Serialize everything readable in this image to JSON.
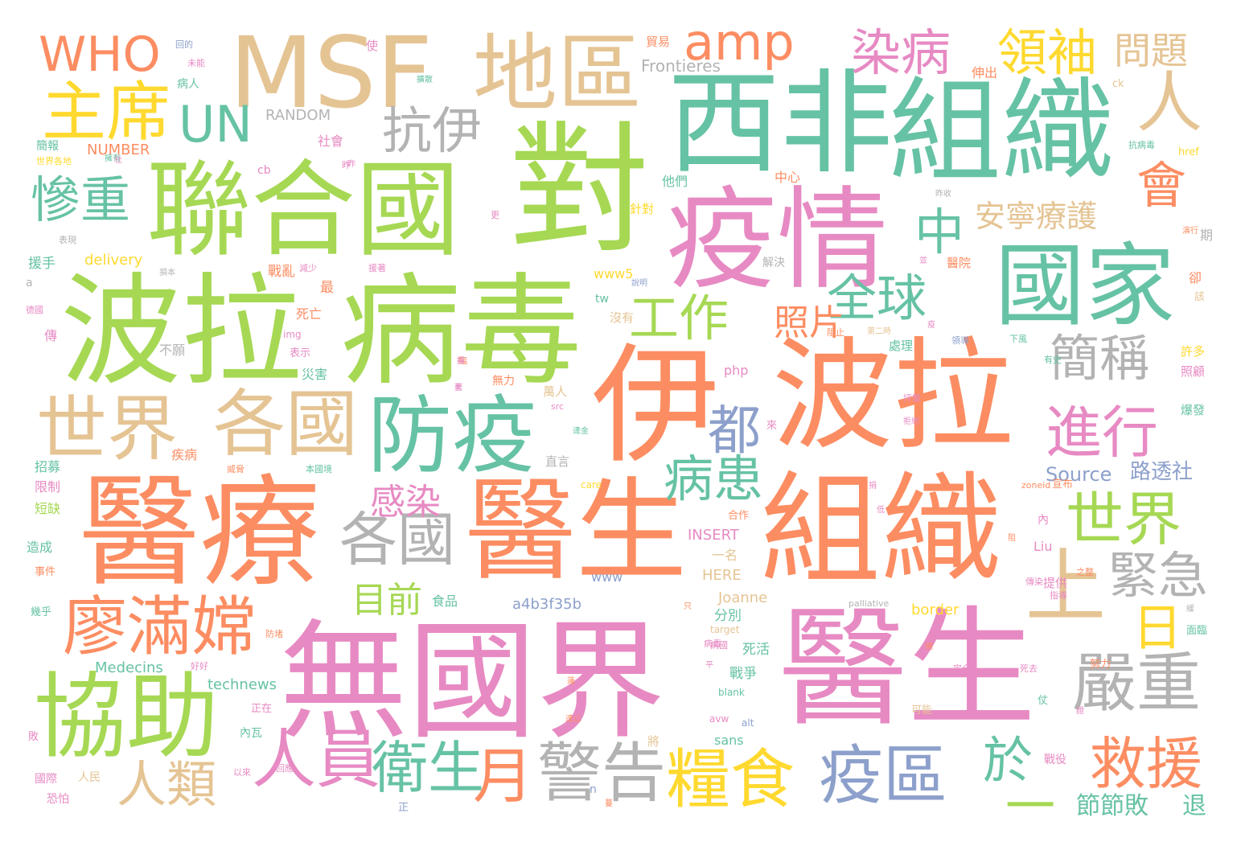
{
  "colors": {
    "pink": "#e78ac3",
    "orange": "#fc8d62",
    "green": "#a6d854",
    "teal": "#66c2a5",
    "tan": "#e5c494",
    "gray": "#b3b3b3",
    "blue": "#8da0cb",
    "yellow": "#ffd92f"
  },
  "words": [
    {
      "text": "無國界",
      "color": "pink"
    },
    {
      "text": "醫生",
      "color": "pink"
    },
    {
      "text": "醫療",
      "color": "orange"
    },
    {
      "text": "醫生",
      "color": "orange"
    },
    {
      "text": "組織",
      "color": "orange"
    },
    {
      "text": "伊",
      "color": "orange"
    },
    {
      "text": "波拉",
      "color": "orange"
    },
    {
      "text": "波拉",
      "color": "green"
    },
    {
      "text": "病毒",
      "color": "green"
    },
    {
      "text": "聯合國",
      "color": "green"
    },
    {
      "text": "對",
      "color": "green"
    },
    {
      "text": "西非",
      "color": "teal"
    },
    {
      "text": "組織",
      "color": "teal"
    },
    {
      "text": "疫情",
      "color": "pink"
    },
    {
      "text": "國家",
      "color": "teal"
    },
    {
      "text": "MSF",
      "color": "tan"
    },
    {
      "text": "地區",
      "color": "tan"
    },
    {
      "text": "協助",
      "color": "green"
    },
    {
      "text": "防疫",
      "color": "teal"
    },
    {
      "text": "世界",
      "color": "tan"
    },
    {
      "text": "各國",
      "color": "tan"
    },
    {
      "text": "各國",
      "color": "gray"
    },
    {
      "text": "廖滿嫦",
      "color": "orange"
    },
    {
      "text": "主席",
      "color": "yellow"
    },
    {
      "text": "WHO",
      "color": "orange"
    },
    {
      "text": "UN",
      "color": "teal"
    },
    {
      "text": "amp",
      "color": "orange"
    },
    {
      "text": "抗伊",
      "color": "gray"
    },
    {
      "text": "染病",
      "color": "pink"
    },
    {
      "text": "領袖",
      "color": "yellow"
    },
    {
      "text": "問題",
      "color": "tan"
    },
    {
      "text": "人",
      "color": "tan"
    },
    {
      "text": "會",
      "color": "orange"
    },
    {
      "text": "中",
      "color": "teal"
    },
    {
      "text": "慘重",
      "color": "teal"
    },
    {
      "text": "工作",
      "color": "green"
    },
    {
      "text": "全球",
      "color": "teal"
    },
    {
      "text": "照片",
      "color": "orange"
    },
    {
      "text": "安寧療護",
      "color": "tan"
    },
    {
      "text": "簡稱",
      "color": "gray"
    },
    {
      "text": "進行",
      "color": "pink"
    },
    {
      "text": "都",
      "color": "blue"
    },
    {
      "text": "病患",
      "color": "teal"
    },
    {
      "text": "世界",
      "color": "green"
    },
    {
      "text": "上",
      "color": "tan"
    },
    {
      "text": "緊急",
      "color": "gray"
    },
    {
      "text": "日",
      "color": "yellow"
    },
    {
      "text": "嚴重",
      "color": "gray"
    },
    {
      "text": "救援",
      "color": "orange"
    },
    {
      "text": "感染",
      "color": "pink"
    },
    {
      "text": "目前",
      "color": "green"
    },
    {
      "text": "人員",
      "color": "pink"
    },
    {
      "text": "人類",
      "color": "tan"
    },
    {
      "text": "衛生",
      "color": "teal"
    },
    {
      "text": "月",
      "color": "orange"
    },
    {
      "text": "警告",
      "color": "gray"
    },
    {
      "text": "糧食",
      "color": "yellow"
    },
    {
      "text": "疫區",
      "color": "blue"
    },
    {
      "text": "於",
      "color": "teal"
    },
    {
      "text": "一",
      "color": "green"
    },
    {
      "text": "節節敗",
      "color": "teal"
    },
    {
      "text": "退",
      "color": "teal"
    },
    {
      "text": "Source",
      "color": "blue"
    },
    {
      "text": "路透社",
      "color": "blue"
    },
    {
      "text": "RANDOM",
      "color": "gray"
    },
    {
      "text": "NUMBER",
      "color": "orange"
    },
    {
      "text": "Frontieres",
      "color": "gray"
    },
    {
      "text": "delivery",
      "color": "yellow"
    },
    {
      "text": "Medecins",
      "color": "teal"
    },
    {
      "text": "technews",
      "color": "teal"
    },
    {
      "text": "a4b3f35b",
      "color": "blue"
    },
    {
      "text": "INSERT",
      "color": "pink"
    },
    {
      "text": "HERE",
      "color": "tan"
    },
    {
      "text": "Joanne",
      "color": "tan"
    },
    {
      "text": "border",
      "color": "yellow"
    },
    {
      "text": "Liu",
      "color": "pink"
    },
    {
      "text": "sans",
      "color": "teal"
    },
    {
      "text": "www",
      "color": "blue"
    },
    {
      "text": "www5",
      "color": "yellow"
    },
    {
      "text": "php",
      "color": "pink"
    },
    {
      "text": "img",
      "color": "pink"
    },
    {
      "text": "tw",
      "color": "teal"
    },
    {
      "text": "cb",
      "color": "pink"
    },
    {
      "text": "care",
      "color": "yellow"
    },
    {
      "text": "src",
      "color": "pink"
    },
    {
      "text": "zoneid",
      "color": "orange"
    },
    {
      "text": "宣布",
      "color": "orange"
    },
    {
      "text": "target",
      "color": "tan"
    },
    {
      "text": "palliative",
      "color": "gray"
    },
    {
      "text": "blank",
      "color": "teal"
    },
    {
      "text": "avw",
      "color": "pink"
    },
    {
      "text": "alt",
      "color": "blue"
    },
    {
      "text": "href",
      "color": "yellow"
    },
    {
      "text": "ck",
      "color": "tan"
    },
    {
      "text": "a",
      "color": "gray"
    },
    {
      "text": "n",
      "color": "blue"
    },
    {
      "text": "死亡",
      "color": "orange"
    },
    {
      "text": "災害",
      "color": "teal"
    },
    {
      "text": "不願",
      "color": "gray"
    },
    {
      "text": "疾病",
      "color": "orange"
    },
    {
      "text": "招募",
      "color": "teal"
    },
    {
      "text": "限制",
      "color": "pink"
    },
    {
      "text": "短缺",
      "color": "green"
    },
    {
      "text": "造成",
      "color": "teal"
    },
    {
      "text": "事件",
      "color": "orange"
    },
    {
      "text": "幾乎",
      "color": "teal"
    },
    {
      "text": "國際",
      "color": "pink"
    },
    {
      "text": "人民",
      "color": "tan"
    },
    {
      "text": "恐怕",
      "color": "pink"
    },
    {
      "text": "死活",
      "color": "teal"
    },
    {
      "text": "戰爭",
      "color": "teal"
    },
    {
      "text": "分別",
      "color": "teal"
    },
    {
      "text": "一名",
      "color": "tan"
    },
    {
      "text": "合作",
      "color": "orange"
    },
    {
      "text": "食品",
      "color": "teal"
    },
    {
      "text": "萬人",
      "color": "tan"
    },
    {
      "text": "無力",
      "color": "orange"
    },
    {
      "text": "直言",
      "color": "gray"
    },
    {
      "text": "提供",
      "color": "pink"
    },
    {
      "text": "努力",
      "color": "orange"
    },
    {
      "text": "面臨",
      "color": "teal"
    },
    {
      "text": "可能",
      "color": "tan"
    },
    {
      "text": "戰役",
      "color": "pink"
    },
    {
      "text": "許多",
      "color": "yellow"
    },
    {
      "text": "照顧",
      "color": "pink"
    },
    {
      "text": "爆發",
      "color": "teal"
    },
    {
      "text": "處理",
      "color": "teal"
    },
    {
      "text": "沒有",
      "color": "tan"
    },
    {
      "text": "中心",
      "color": "orange"
    },
    {
      "text": "社會",
      "color": "pink"
    },
    {
      "text": "他們",
      "color": "teal"
    },
    {
      "text": "針對",
      "color": "yellow"
    },
    {
      "text": "解決",
      "color": "gray"
    },
    {
      "text": "醫院",
      "color": "orange"
    },
    {
      "text": "伸出",
      "color": "orange"
    },
    {
      "text": "戰亂",
      "color": "orange"
    },
    {
      "text": "最",
      "color": "orange"
    },
    {
      "text": "表示",
      "color": "pink"
    },
    {
      "text": "援手",
      "color": "teal"
    },
    {
      "text": "病人",
      "color": "teal"
    },
    {
      "text": "簡報",
      "color": "teal"
    },
    {
      "text": "世界各地",
      "color": "yellow"
    },
    {
      "text": "使",
      "color": "pink"
    },
    {
      "text": "貿易",
      "color": "orange"
    },
    {
      "text": "期",
      "color": "gray"
    },
    {
      "text": "卻",
      "color": "orange"
    },
    {
      "text": "該",
      "color": "tan"
    },
    {
      "text": "傳",
      "color": "pink"
    },
    {
      "text": "內瓦",
      "color": "teal"
    },
    {
      "text": "將",
      "color": "tan"
    },
    {
      "text": "正在",
      "color": "pink"
    },
    {
      "text": "敗",
      "color": "pink"
    },
    {
      "text": "仗",
      "color": "teal"
    },
    {
      "text": "正",
      "color": "blue"
    },
    {
      "text": "內",
      "color": "pink"
    },
    {
      "text": "以來",
      "color": "pink"
    },
    {
      "text": "回應",
      "color": "pink"
    },
    {
      "text": "病毒",
      "color": "pink"
    },
    {
      "text": "傳染",
      "color": "pink"
    },
    {
      "text": "抗病毒",
      "color": "teal"
    },
    {
      "text": "演行",
      "color": "orange"
    },
    {
      "text": "死去",
      "color": "pink"
    },
    {
      "text": "完全",
      "color": "pink"
    },
    {
      "text": "指導",
      "color": "pink"
    },
    {
      "text": "之整",
      "color": "orange"
    },
    {
      "text": "抨擊",
      "color": "pink"
    },
    {
      "text": "有史",
      "color": "teal"
    },
    {
      "text": "下風",
      "color": "teal"
    },
    {
      "text": "領導",
      "color": "blue"
    },
    {
      "text": "阻止",
      "color": "orange"
    },
    {
      "text": "第二時",
      "color": "tan"
    },
    {
      "text": "昨",
      "color": "pink"
    },
    {
      "text": "更",
      "color": "pink"
    },
    {
      "text": "損本",
      "color": "gray"
    },
    {
      "text": "拒絕",
      "color": "pink"
    },
    {
      "text": "威脅",
      "color": "orange"
    },
    {
      "text": "本國境",
      "color": "teal"
    },
    {
      "text": "德國",
      "color": "pink"
    },
    {
      "text": "表現",
      "color": "gray"
    },
    {
      "text": "好好",
      "color": "pink"
    },
    {
      "text": "防堵",
      "color": "orange"
    },
    {
      "text": "減少",
      "color": "pink"
    },
    {
      "text": "援著",
      "color": "pink"
    },
    {
      "text": "來",
      "color": "pink"
    },
    {
      "text": "病國",
      "color": "pink"
    },
    {
      "text": "未能",
      "color": "pink"
    },
    {
      "text": "回的",
      "color": "blue"
    },
    {
      "text": "擴散",
      "color": "teal"
    },
    {
      "text": "說明",
      "color": "blue"
    },
    {
      "text": "擁有",
      "color": "teal"
    },
    {
      "text": "至",
      "color": "pink"
    },
    {
      "text": "臨",
      "color": "orange"
    },
    {
      "text": "著",
      "color": "pink"
    },
    {
      "text": "達金",
      "color": "teal"
    },
    {
      "text": "繞",
      "color": "orange"
    },
    {
      "text": "只",
      "color": "orange"
    },
    {
      "text": "平",
      "color": "pink"
    },
    {
      "text": "蓮",
      "color": "orange"
    },
    {
      "text": "捐",
      "color": "pink"
    },
    {
      "text": "社",
      "color": "pink"
    },
    {
      "text": "昨",
      "color": "pink"
    },
    {
      "text": "並",
      "color": "pink"
    },
    {
      "text": "低",
      "color": "pink"
    },
    {
      "text": "阻",
      "color": "orange"
    },
    {
      "text": "達止",
      "color": "orange"
    },
    {
      "text": "緩",
      "color": "gray"
    },
    {
      "text": "疫",
      "color": "pink"
    },
    {
      "text": "昨收",
      "color": "gray"
    },
    {
      "text": "證",
      "color": "pink"
    },
    {
      "text": "擴",
      "color": "pink"
    },
    {
      "text": "蔓",
      "color": "orange"
    }
  ]
}
